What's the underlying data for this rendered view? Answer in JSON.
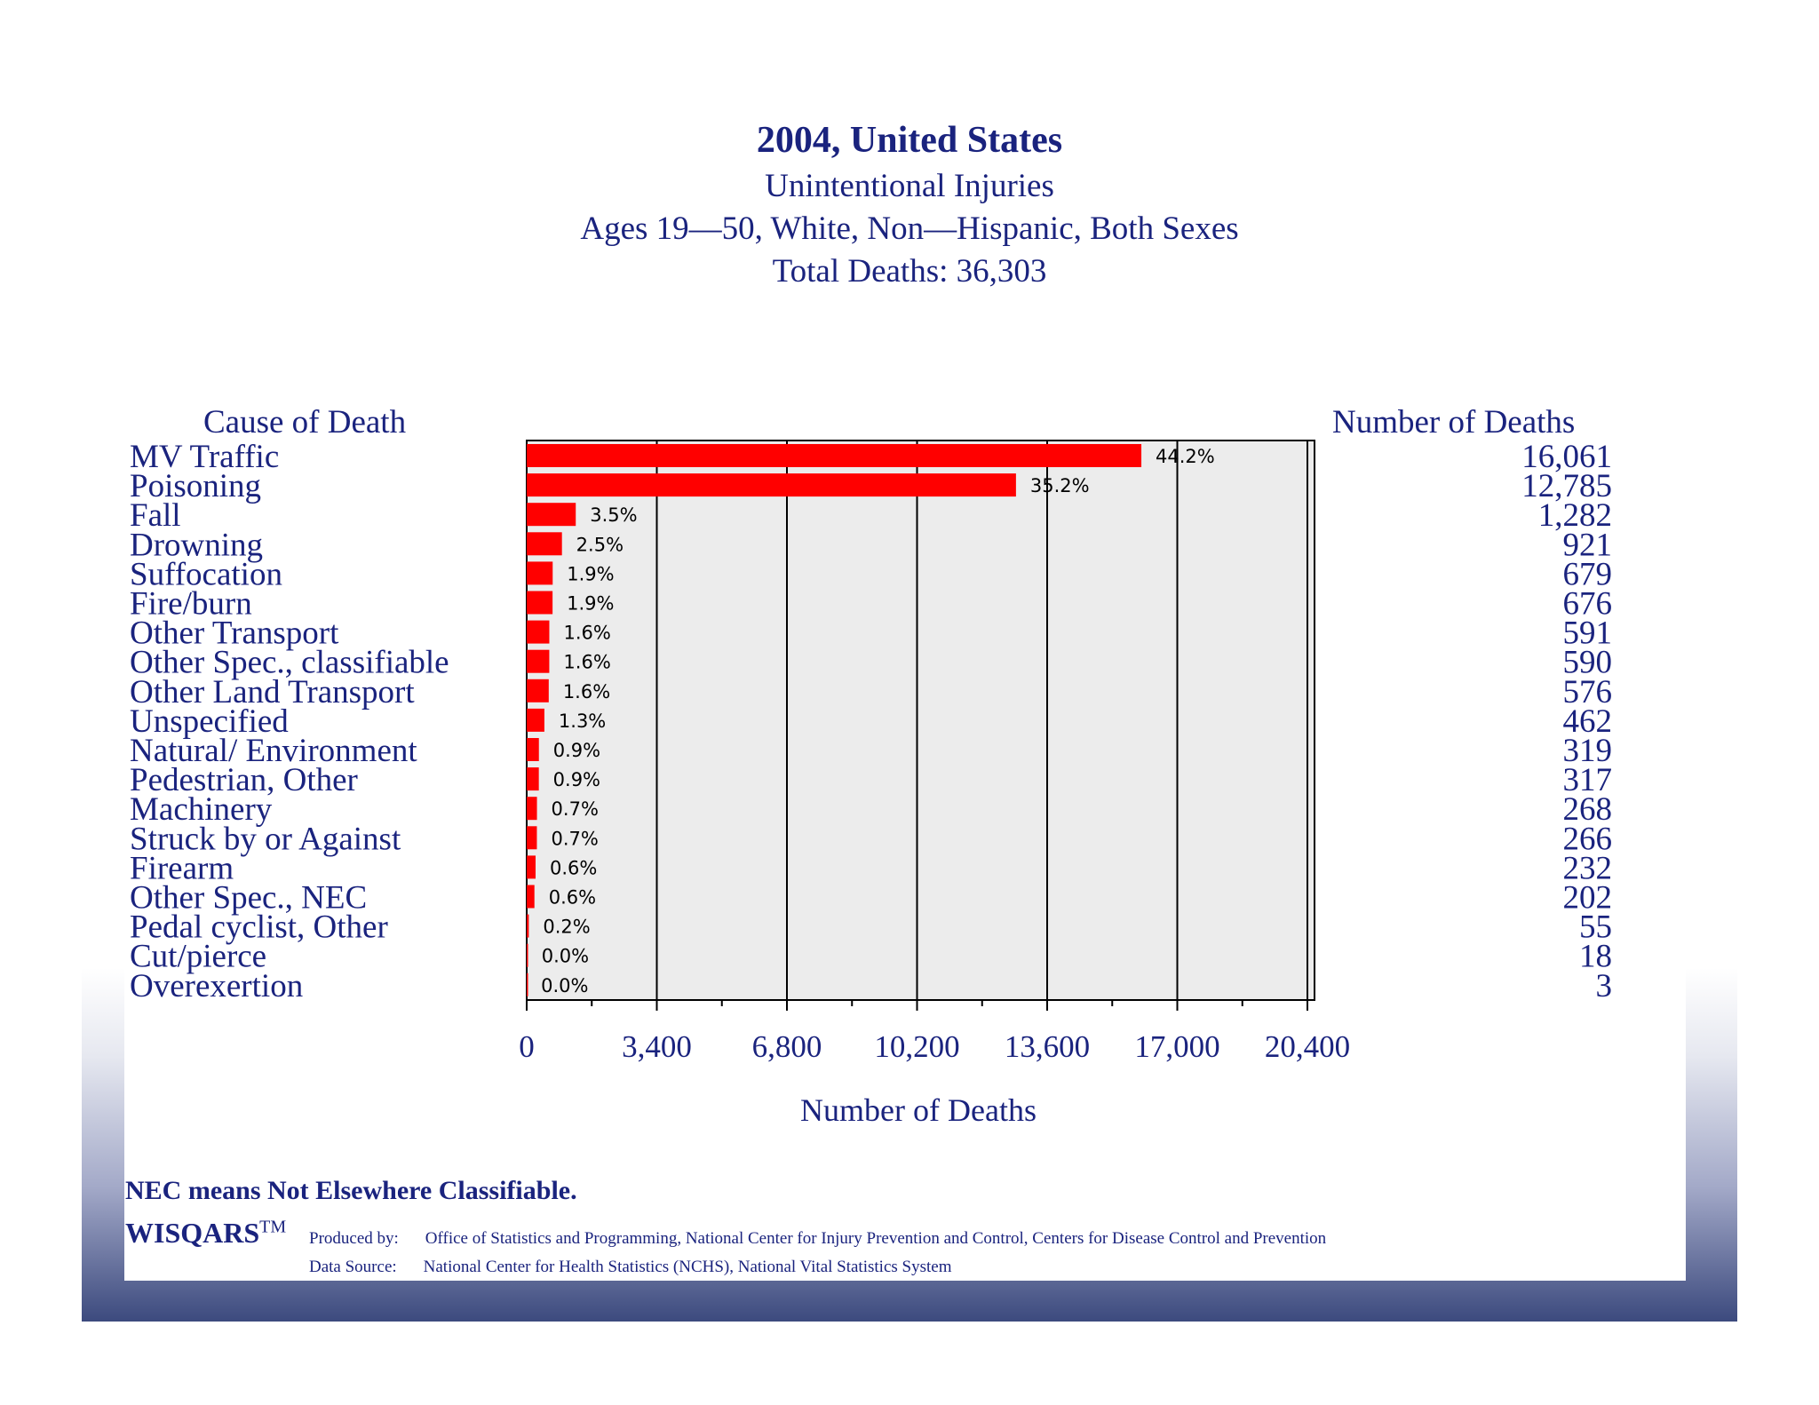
{
  "colors": {
    "text": "#1a237e",
    "bar": "#ff0000",
    "plot_bg": "#ececec"
  },
  "chart_data": {
    "type": "bar",
    "orientation": "horizontal",
    "title": "2004, United States",
    "subtitle": [
      "Unintentional Injuries",
      "Ages 19—50, White, Non—Hispanic, Both Sexes",
      "Total Deaths: 36,303"
    ],
    "left_header": "Cause of Death",
    "right_header": "Number of Deaths",
    "xlabel": "Number of Deaths",
    "xlim": [
      0,
      20400
    ],
    "xticks": [
      0,
      3400,
      6800,
      10200,
      13600,
      17000,
      20400
    ],
    "xtick_labels": [
      "0",
      "3,400",
      "6,800",
      "10,200",
      "13,600",
      "17,000",
      "20,400"
    ],
    "categories": [
      "MV Traffic",
      "Poisoning",
      "Fall",
      "Drowning",
      "Suffocation",
      "Fire/burn",
      "Other Transport",
      "Other Spec., classifiable",
      "Other Land Transport",
      "Unspecified",
      "Natural/ Environment",
      "Pedestrian, Other",
      "Machinery",
      "Struck by or Against",
      "Firearm",
      "Other Spec., NEC",
      "Pedal cyclist, Other",
      "Cut/pierce",
      "Overexertion"
    ],
    "values": [
      16061,
      12785,
      1282,
      921,
      679,
      676,
      591,
      590,
      576,
      462,
      319,
      317,
      268,
      266,
      232,
      202,
      55,
      18,
      3
    ],
    "value_labels": [
      "16,061",
      "12,785",
      "1,282",
      "921",
      "679",
      "676",
      "591",
      "590",
      "576",
      "462",
      "319",
      "317",
      "268",
      "266",
      "232",
      "202",
      "55",
      "18",
      "3"
    ],
    "percent_labels": [
      "44.2%",
      "35.2%",
      "3.5%",
      "2.5%",
      "1.9%",
      "1.9%",
      "1.6%",
      "1.6%",
      "1.6%",
      "1.3%",
      "0.9%",
      "0.9%",
      "0.7%",
      "0.7%",
      "0.6%",
      "0.6%",
      "0.2%",
      "0.0%",
      "0.0%"
    ]
  },
  "footer": {
    "nec_note": "NEC means Not Elsewhere Classifiable.",
    "logo": "WISQARS",
    "logo_tm": "TM",
    "produced_label": "Produced by:",
    "produced_text": "Office of Statistics and Programming, National Center for Injury Prevention and Control,  Centers for Disease Control and Prevention",
    "source_label": "Data Source:",
    "source_text": "National Center for Health Statistics (NCHS), National Vital Statistics System"
  }
}
